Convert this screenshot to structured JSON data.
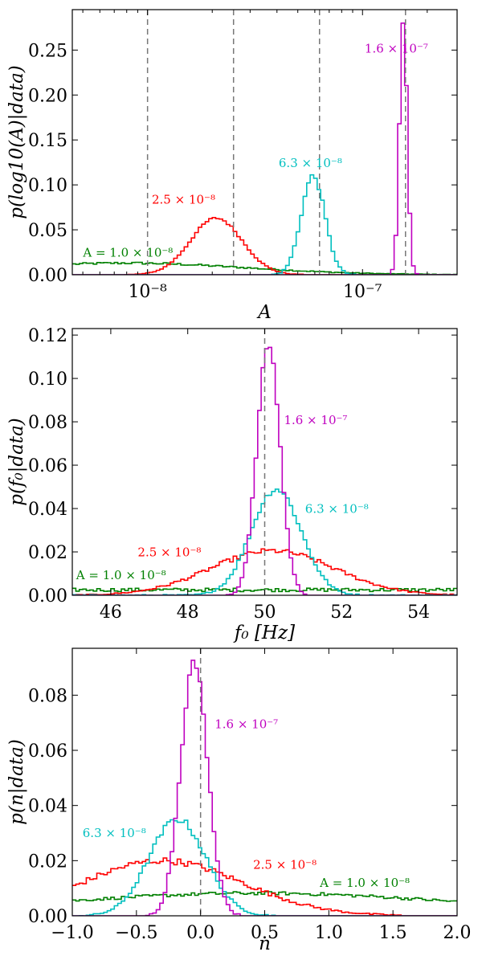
{
  "colors": {
    "A_1.0e-8": "#008000",
    "A_2.5e-8": "#ff0000",
    "A_6.3e-8": "#00bfbf",
    "A_1.6e-7": "#bf00bf",
    "truth_line": "#777777"
  },
  "chart_data": [
    {
      "type": "histogram",
      "xlabel": "A",
      "ylabel": "p(log10(A)|data)",
      "xscale": "log",
      "xlim_log10": [
        -8.35,
        -6.56
      ],
      "ylim": [
        0,
        0.295
      ],
      "xticks": [
        {
          "value_log10": -8,
          "label": "10⁻⁸"
        },
        {
          "value_log10": -7,
          "label": "10⁻⁷"
        }
      ],
      "yticks": [
        {
          "value": 0.0,
          "label": "0.00"
        },
        {
          "value": 0.05,
          "label": "0.05"
        },
        {
          "value": 0.1,
          "label": "0.10"
        },
        {
          "value": 0.15,
          "label": "0.15"
        },
        {
          "value": 0.2,
          "label": "0.20"
        },
        {
          "value": 0.25,
          "label": "0.25"
        }
      ],
      "true_values_log10": [
        -8.0,
        -7.6,
        -7.2,
        -6.8
      ],
      "series": [
        {
          "name": "A = 1.0 × 10⁻⁸",
          "color_key": "A_1.0e-8",
          "kind": "gauss",
          "mean": -8.1,
          "sigma": 0.55,
          "peak": 0.013,
          "noise": 0.0012,
          "annotation": {
            "text": "A = 1.0 × 10⁻⁸",
            "x_log10": -8.3,
            "y": 0.02
          }
        },
        {
          "name": "2.5 × 10⁻⁸",
          "color_key": "A_2.5e-8",
          "kind": "gauss",
          "mean": -7.68,
          "sigma": 0.12,
          "peak": 0.063,
          "noise": 0.0015,
          "annotation": {
            "text": "2.5 × 10⁻⁸",
            "x_log10": -7.98,
            "y": 0.079
          }
        },
        {
          "name": "6.3 × 10⁻⁸",
          "color_key": "A_6.3e-8",
          "kind": "gauss",
          "mean": -7.23,
          "sigma": 0.055,
          "peak": 0.11,
          "noise": 0.003,
          "annotation": {
            "text": "6.3 × 10⁻⁸",
            "x_log10": -7.39,
            "y": 0.12
          }
        },
        {
          "name": "1.6 × 10⁻⁷",
          "color_key": "A_1.6e-7",
          "kind": "gauss",
          "mean": -6.81,
          "sigma": 0.018,
          "peak": 0.285,
          "noise": 0.004,
          "annotation": {
            "text": "1.6 × 10⁻⁷",
            "x_log10": -6.99,
            "y": 0.247
          }
        }
      ]
    },
    {
      "type": "histogram",
      "xlabel": "f₀ [Hz]",
      "ylabel": "p(f₀|data)",
      "xlim": [
        45,
        55
      ],
      "ylim": [
        0,
        0.123
      ],
      "xticks": [
        {
          "value": 46,
          "label": "46"
        },
        {
          "value": 48,
          "label": "48"
        },
        {
          "value": 50,
          "label": "50"
        },
        {
          "value": 52,
          "label": "52"
        },
        {
          "value": 54,
          "label": "54"
        }
      ],
      "yticks": [
        {
          "value": 0.0,
          "label": "0.00"
        },
        {
          "value": 0.02,
          "label": "0.02"
        },
        {
          "value": 0.04,
          "label": "0.04"
        },
        {
          "value": 0.06,
          "label": "0.06"
        },
        {
          "value": 0.08,
          "label": "0.08"
        },
        {
          "value": 0.1,
          "label": "0.10"
        },
        {
          "value": 0.12,
          "label": "0.12"
        }
      ],
      "true_values": [
        50
      ],
      "series": [
        {
          "name": "A = 1.0 × 10⁻⁸",
          "color_key": "A_1.0e-8",
          "kind": "flat",
          "level": 0.0025,
          "noise": 0.0008,
          "annotation": {
            "text": "A = 1.0 × 10⁻⁸",
            "x": 45.1,
            "y": 0.0075
          }
        },
        {
          "name": "2.5 × 10⁻⁸",
          "color_key": "A_2.5e-8",
          "kind": "gauss",
          "mean": 50.2,
          "sigma": 1.6,
          "peak": 0.0205,
          "noise": 0.0012,
          "annotation": {
            "text": "2.5 × 10⁻⁸",
            "x": 46.7,
            "y": 0.018
          }
        },
        {
          "name": "6.3 × 10⁻⁸",
          "color_key": "A_6.3e-8",
          "kind": "gauss",
          "mean": 50.3,
          "sigma": 0.65,
          "peak": 0.049,
          "noise": 0.0015,
          "annotation": {
            "text": "6.3 × 10⁻⁸",
            "x": 51.05,
            "y": 0.038
          }
        },
        {
          "name": "1.6 × 10⁻⁷",
          "color_key": "A_1.6e-7",
          "kind": "gauss",
          "mean": 50.1,
          "sigma": 0.3,
          "peak": 0.116,
          "noise": 0.002,
          "annotation": {
            "text": "1.6 × 10⁻⁷",
            "x": 50.5,
            "y": 0.079
          }
        }
      ]
    },
    {
      "type": "histogram",
      "xlabel": "n",
      "ylabel": "p(n|data)",
      "xlim": [
        -1.0,
        2.0
      ],
      "ylim": [
        0,
        0.097
      ],
      "xticks": [
        {
          "value": -1.0,
          "label": "−1.0"
        },
        {
          "value": -0.5,
          "label": "−0.5"
        },
        {
          "value": 0.0,
          "label": "0.0"
        },
        {
          "value": 0.5,
          "label": "0.5"
        },
        {
          "value": 1.0,
          "label": "1.0"
        },
        {
          "value": 1.5,
          "label": "1.5"
        },
        {
          "value": 2.0,
          "label": "2.0"
        }
      ],
      "yticks": [
        {
          "value": 0.0,
          "label": "0.00"
        },
        {
          "value": 0.02,
          "label": "0.02"
        },
        {
          "value": 0.04,
          "label": "0.04"
        },
        {
          "value": 0.06,
          "label": "0.06"
        },
        {
          "value": 0.08,
          "label": "0.08"
        }
      ],
      "true_values": [
        0
      ],
      "series": [
        {
          "name": "A = 1.0 × 10⁻⁸",
          "color_key": "A_1.0e-8",
          "kind": "gauss",
          "mean": 0.45,
          "sigma": 1.6,
          "peak": 0.0082,
          "noise": 0.0006,
          "annotation": {
            "text": "A = 1.0 × 10⁻⁸",
            "x": 0.93,
            "y": 0.0105
          }
        },
        {
          "name": "2.5 × 10⁻⁸",
          "color_key": "A_2.5e-8",
          "kind": "gauss",
          "mean": -0.3,
          "sigma": 0.62,
          "peak": 0.02,
          "noise": 0.0012,
          "cutoff": 1.55,
          "annotation": {
            "text": "2.5 × 10⁻⁸",
            "x": 0.41,
            "y": 0.017
          }
        },
        {
          "name": "6.3 × 10⁻⁸",
          "color_key": "A_6.3e-8",
          "kind": "gauss",
          "mean": -0.18,
          "sigma": 0.22,
          "peak": 0.035,
          "noise": 0.0013,
          "cutoff": 0.6,
          "annotation": {
            "text": "6.3 × 10⁻⁸",
            "x": -0.92,
            "y": 0.0285
          }
        },
        {
          "name": "1.6 × 10⁻⁷",
          "color_key": "A_1.6e-7",
          "kind": "gauss",
          "mean": -0.05,
          "sigma": 0.105,
          "peak": 0.092,
          "noise": 0.0015,
          "cutoff": 0.35,
          "annotation": {
            "text": "1.6 × 10⁻⁷",
            "x": 0.11,
            "y": 0.068
          }
        }
      ]
    }
  ]
}
